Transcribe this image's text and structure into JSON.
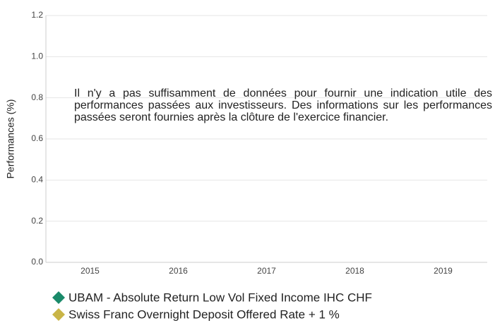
{
  "chart_data": {
    "type": "bar",
    "categories": [
      "2015",
      "2016",
      "2017",
      "2018",
      "2019"
    ],
    "series": [
      {
        "name": "UBAM - Absolute Return Low Vol Fixed Income IHC CHF",
        "color": "#1a8a6a",
        "values": [
          null,
          null,
          null,
          null,
          null
        ]
      },
      {
        "name": "Swiss Franc Overnight Deposit Offered Rate + 1 %",
        "color": "#c9b547",
        "values": [
          null,
          null,
          null,
          null,
          null
        ]
      }
    ],
    "ylabel": "Performances (%)",
    "ylim": [
      0,
      1.2
    ],
    "yticks": [
      {
        "value": 0,
        "label": "0.0"
      },
      0.2,
      0.4,
      0.6,
      0.8,
      {
        "value": 1,
        "label": "1.0"
      },
      1.2
    ],
    "grid": true,
    "annotation": "Il n'y a pas suffisamment de données pour fournir une indication utile des performances passées aux investisseurs. Des informations sur les performances passées seront fournies après la clôture de l'exercice financier."
  }
}
